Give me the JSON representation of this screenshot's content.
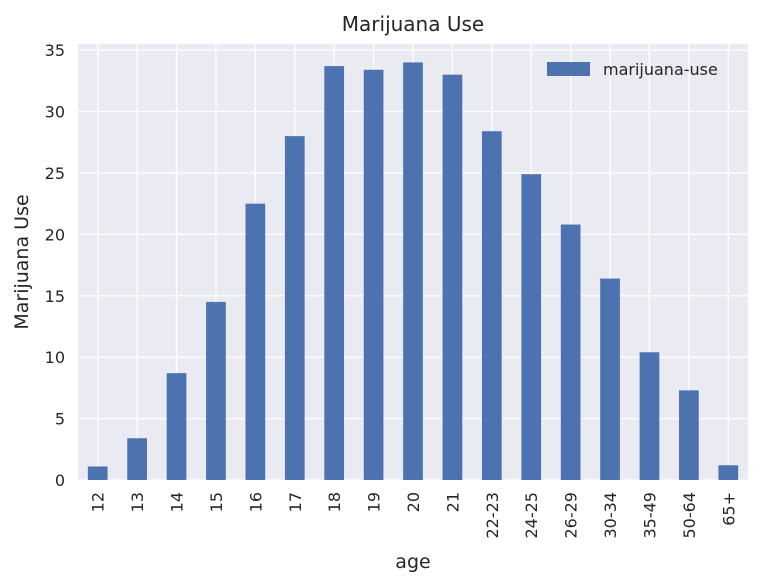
{
  "chart_data": {
    "type": "bar",
    "title": "Marijuana Use",
    "xlabel": "age",
    "ylabel": "Marijuana Use",
    "categories": [
      "12",
      "13",
      "14",
      "15",
      "16",
      "17",
      "18",
      "19",
      "20",
      "21",
      "22-23",
      "24-25",
      "26-29",
      "30-34",
      "35-49",
      "50-64",
      "65+"
    ],
    "series": [
      {
        "name": "marijuana-use",
        "color": "#4c72b0",
        "values": [
          1.1,
          3.4,
          8.7,
          14.5,
          22.5,
          28.0,
          33.7,
          33.4,
          34.0,
          33.0,
          28.4,
          24.9,
          20.8,
          16.4,
          10.4,
          7.3,
          1.2
        ]
      }
    ],
    "ylim": [
      0,
      35.5
    ],
    "yticks": [
      "0",
      "5",
      "10",
      "15",
      "20",
      "25",
      "30",
      "35"
    ],
    "grid": true,
    "legend": "top-right",
    "background_color": "#eaeaf2"
  }
}
